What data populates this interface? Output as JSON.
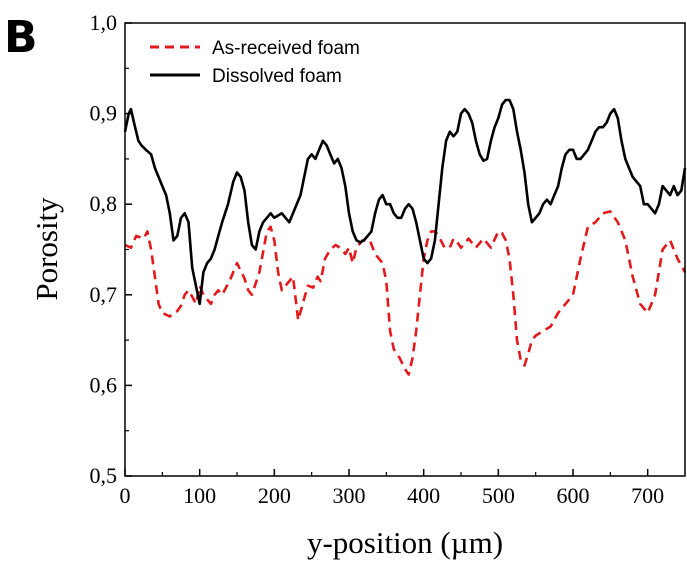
{
  "panel_label": "B",
  "chart_data": {
    "type": "line",
    "xlabel": "y-position (µm)",
    "ylabel": "Porosity",
    "xlim": [
      0,
      750
    ],
    "ylim": [
      0.5,
      1.0
    ],
    "x_ticks": [
      0,
      100,
      200,
      300,
      400,
      500,
      600,
      700
    ],
    "x_tick_labels": [
      "0",
      "100",
      "200",
      "300",
      "400",
      "500",
      "600",
      "700"
    ],
    "y_ticks": [
      0.5,
      0.6,
      0.7,
      0.8,
      0.9,
      1.0
    ],
    "y_tick_labels": [
      "0,5",
      "0,6",
      "0,7",
      "0,8",
      "0,9",
      "1,0"
    ],
    "grid": false,
    "legend_position": "top-left",
    "series": [
      {
        "name": "As-received foam",
        "color": "#e3191c",
        "style": "dashed",
        "points": [
          [
            0,
            0.755
          ],
          [
            8,
            0.752
          ],
          [
            15,
            0.765
          ],
          [
            25,
            0.762
          ],
          [
            30,
            0.77
          ],
          [
            35,
            0.75
          ],
          [
            40,
            0.72
          ],
          [
            45,
            0.69
          ],
          [
            50,
            0.68
          ],
          [
            55,
            0.678
          ],
          [
            60,
            0.676
          ],
          [
            65,
            0.68
          ],
          [
            70,
            0.682
          ],
          [
            75,
            0.688
          ],
          [
            80,
            0.7
          ],
          [
            85,
            0.705
          ],
          [
            90,
            0.698
          ],
          [
            95,
            0.69
          ],
          [
            100,
            0.71
          ],
          [
            105,
            0.7
          ],
          [
            110,
            0.695
          ],
          [
            115,
            0.69
          ],
          [
            120,
            0.7
          ],
          [
            125,
            0.705
          ],
          [
            130,
            0.7
          ],
          [
            140,
            0.715
          ],
          [
            150,
            0.735
          ],
          [
            160,
            0.718
          ],
          [
            165,
            0.705
          ],
          [
            170,
            0.7
          ],
          [
            180,
            0.725
          ],
          [
            190,
            0.77
          ],
          [
            195,
            0.775
          ],
          [
            200,
            0.76
          ],
          [
            205,
            0.725
          ],
          [
            210,
            0.705
          ],
          [
            215,
            0.71
          ],
          [
            225,
            0.72
          ],
          [
            232,
            0.672
          ],
          [
            238,
            0.69
          ],
          [
            245,
            0.71
          ],
          [
            252,
            0.708
          ],
          [
            258,
            0.72
          ],
          [
            262,
            0.715
          ],
          [
            268,
            0.74
          ],
          [
            275,
            0.75
          ],
          [
            282,
            0.755
          ],
          [
            288,
            0.752
          ],
          [
            295,
            0.745
          ],
          [
            300,
            0.752
          ],
          [
            305,
            0.735
          ],
          [
            310,
            0.752
          ],
          [
            318,
            0.76
          ],
          [
            322,
            0.76
          ],
          [
            328,
            0.76
          ],
          [
            335,
            0.745
          ],
          [
            340,
            0.74
          ],
          [
            345,
            0.735
          ],
          [
            350,
            0.715
          ],
          [
            355,
            0.66
          ],
          [
            360,
            0.64
          ],
          [
            368,
            0.63
          ],
          [
            375,
            0.618
          ],
          [
            380,
            0.612
          ],
          [
            385,
            0.63
          ],
          [
            390,
            0.66
          ],
          [
            395,
            0.7
          ],
          [
            400,
            0.74
          ],
          [
            405,
            0.76
          ],
          [
            410,
            0.77
          ],
          [
            415,
            0.77
          ],
          [
            420,
            0.765
          ],
          [
            428,
            0.752
          ],
          [
            435,
            0.752
          ],
          [
            440,
            0.762
          ],
          [
            445,
            0.758
          ],
          [
            450,
            0.752
          ],
          [
            460,
            0.762
          ],
          [
            470,
            0.752
          ],
          [
            480,
            0.762
          ],
          [
            490,
            0.752
          ],
          [
            500,
            0.77
          ],
          [
            505,
            0.768
          ],
          [
            510,
            0.76
          ],
          [
            515,
            0.74
          ],
          [
            520,
            0.7
          ],
          [
            525,
            0.65
          ],
          [
            530,
            0.628
          ],
          [
            535,
            0.622
          ],
          [
            540,
            0.635
          ],
          [
            545,
            0.65
          ],
          [
            550,
            0.655
          ],
          [
            560,
            0.66
          ],
          [
            570,
            0.665
          ],
          [
            580,
            0.68
          ],
          [
            590,
            0.69
          ],
          [
            600,
            0.7
          ],
          [
            610,
            0.74
          ],
          [
            620,
            0.775
          ],
          [
            630,
            0.78
          ],
          [
            640,
            0.79
          ],
          [
            650,
            0.792
          ],
          [
            660,
            0.78
          ],
          [
            670,
            0.76
          ],
          [
            680,
            0.72
          ],
          [
            690,
            0.69
          ],
          [
            700,
            0.68
          ],
          [
            710,
            0.7
          ],
          [
            720,
            0.75
          ],
          [
            730,
            0.76
          ],
          [
            740,
            0.74
          ],
          [
            750,
            0.725
          ]
        ]
      },
      {
        "name": "Dissolved foam",
        "color": "#000000",
        "style": "solid",
        "points": [
          [
            0,
            0.88
          ],
          [
            5,
            0.9
          ],
          [
            8,
            0.905
          ],
          [
            12,
            0.89
          ],
          [
            18,
            0.87
          ],
          [
            22,
            0.865
          ],
          [
            28,
            0.86
          ],
          [
            35,
            0.855
          ],
          [
            40,
            0.84
          ],
          [
            45,
            0.83
          ],
          [
            50,
            0.82
          ],
          [
            55,
            0.81
          ],
          [
            60,
            0.79
          ],
          [
            65,
            0.76
          ],
          [
            70,
            0.765
          ],
          [
            75,
            0.785
          ],
          [
            80,
            0.79
          ],
          [
            85,
            0.78
          ],
          [
            90,
            0.73
          ],
          [
            95,
            0.71
          ],
          [
            100,
            0.69
          ],
          [
            105,
            0.725
          ],
          [
            110,
            0.735
          ],
          [
            115,
            0.74
          ],
          [
            120,
            0.75
          ],
          [
            125,
            0.765
          ],
          [
            130,
            0.78
          ],
          [
            138,
            0.8
          ],
          [
            145,
            0.825
          ],
          [
            150,
            0.835
          ],
          [
            155,
            0.83
          ],
          [
            160,
            0.815
          ],
          [
            165,
            0.78
          ],
          [
            170,
            0.755
          ],
          [
            175,
            0.75
          ],
          [
            180,
            0.77
          ],
          [
            185,
            0.78
          ],
          [
            190,
            0.785
          ],
          [
            195,
            0.79
          ],
          [
            200,
            0.785
          ],
          [
            210,
            0.79
          ],
          [
            215,
            0.785
          ],
          [
            220,
            0.78
          ],
          [
            225,
            0.79
          ],
          [
            230,
            0.8
          ],
          [
            235,
            0.81
          ],
          [
            240,
            0.83
          ],
          [
            245,
            0.85
          ],
          [
            250,
            0.855
          ],
          [
            255,
            0.85
          ],
          [
            260,
            0.86
          ],
          [
            265,
            0.87
          ],
          [
            270,
            0.865
          ],
          [
            275,
            0.855
          ],
          [
            280,
            0.845
          ],
          [
            285,
            0.85
          ],
          [
            290,
            0.84
          ],
          [
            295,
            0.82
          ],
          [
            300,
            0.79
          ],
          [
            305,
            0.77
          ],
          [
            310,
            0.76
          ],
          [
            315,
            0.758
          ],
          [
            320,
            0.76
          ],
          [
            325,
            0.765
          ],
          [
            330,
            0.77
          ],
          [
            335,
            0.79
          ],
          [
            340,
            0.805
          ],
          [
            345,
            0.81
          ],
          [
            350,
            0.8
          ],
          [
            355,
            0.8
          ],
          [
            360,
            0.79
          ],
          [
            365,
            0.785
          ],
          [
            370,
            0.785
          ],
          [
            375,
            0.795
          ],
          [
            380,
            0.8
          ],
          [
            385,
            0.795
          ],
          [
            390,
            0.78
          ],
          [
            395,
            0.76
          ],
          [
            400,
            0.74
          ],
          [
            405,
            0.735
          ],
          [
            410,
            0.74
          ],
          [
            415,
            0.76
          ],
          [
            420,
            0.8
          ],
          [
            425,
            0.84
          ],
          [
            430,
            0.87
          ],
          [
            435,
            0.88
          ],
          [
            440,
            0.875
          ],
          [
            445,
            0.88
          ],
          [
            450,
            0.9
          ],
          [
            455,
            0.905
          ],
          [
            460,
            0.9
          ],
          [
            465,
            0.89
          ],
          [
            470,
            0.87
          ],
          [
            475,
            0.855
          ],
          [
            480,
            0.848
          ],
          [
            485,
            0.85
          ],
          [
            490,
            0.87
          ],
          [
            495,
            0.885
          ],
          [
            500,
            0.895
          ],
          [
            505,
            0.91
          ],
          [
            510,
            0.915
          ],
          [
            515,
            0.915
          ],
          [
            520,
            0.905
          ],
          [
            525,
            0.88
          ],
          [
            530,
            0.86
          ],
          [
            535,
            0.835
          ],
          [
            540,
            0.8
          ],
          [
            545,
            0.78
          ],
          [
            550,
            0.785
          ],
          [
            555,
            0.79
          ],
          [
            560,
            0.8
          ],
          [
            565,
            0.805
          ],
          [
            570,
            0.8
          ],
          [
            575,
            0.81
          ],
          [
            580,
            0.82
          ],
          [
            585,
            0.84
          ],
          [
            590,
            0.855
          ],
          [
            595,
            0.86
          ],
          [
            600,
            0.86
          ],
          [
            605,
            0.85
          ],
          [
            610,
            0.85
          ],
          [
            615,
            0.855
          ],
          [
            620,
            0.86
          ],
          [
            625,
            0.87
          ],
          [
            630,
            0.88
          ],
          [
            635,
            0.885
          ],
          [
            640,
            0.885
          ],
          [
            645,
            0.89
          ],
          [
            650,
            0.9
          ],
          [
            655,
            0.905
          ],
          [
            660,
            0.895
          ],
          [
            665,
            0.87
          ],
          [
            670,
            0.85
          ],
          [
            675,
            0.84
          ],
          [
            680,
            0.83
          ],
          [
            685,
            0.825
          ],
          [
            690,
            0.82
          ],
          [
            695,
            0.8
          ],
          [
            700,
            0.8
          ],
          [
            705,
            0.795
          ],
          [
            710,
            0.79
          ],
          [
            715,
            0.8
          ],
          [
            720,
            0.82
          ],
          [
            725,
            0.815
          ],
          [
            730,
            0.81
          ],
          [
            735,
            0.82
          ],
          [
            740,
            0.81
          ],
          [
            745,
            0.815
          ],
          [
            750,
            0.84
          ]
        ]
      }
    ]
  }
}
